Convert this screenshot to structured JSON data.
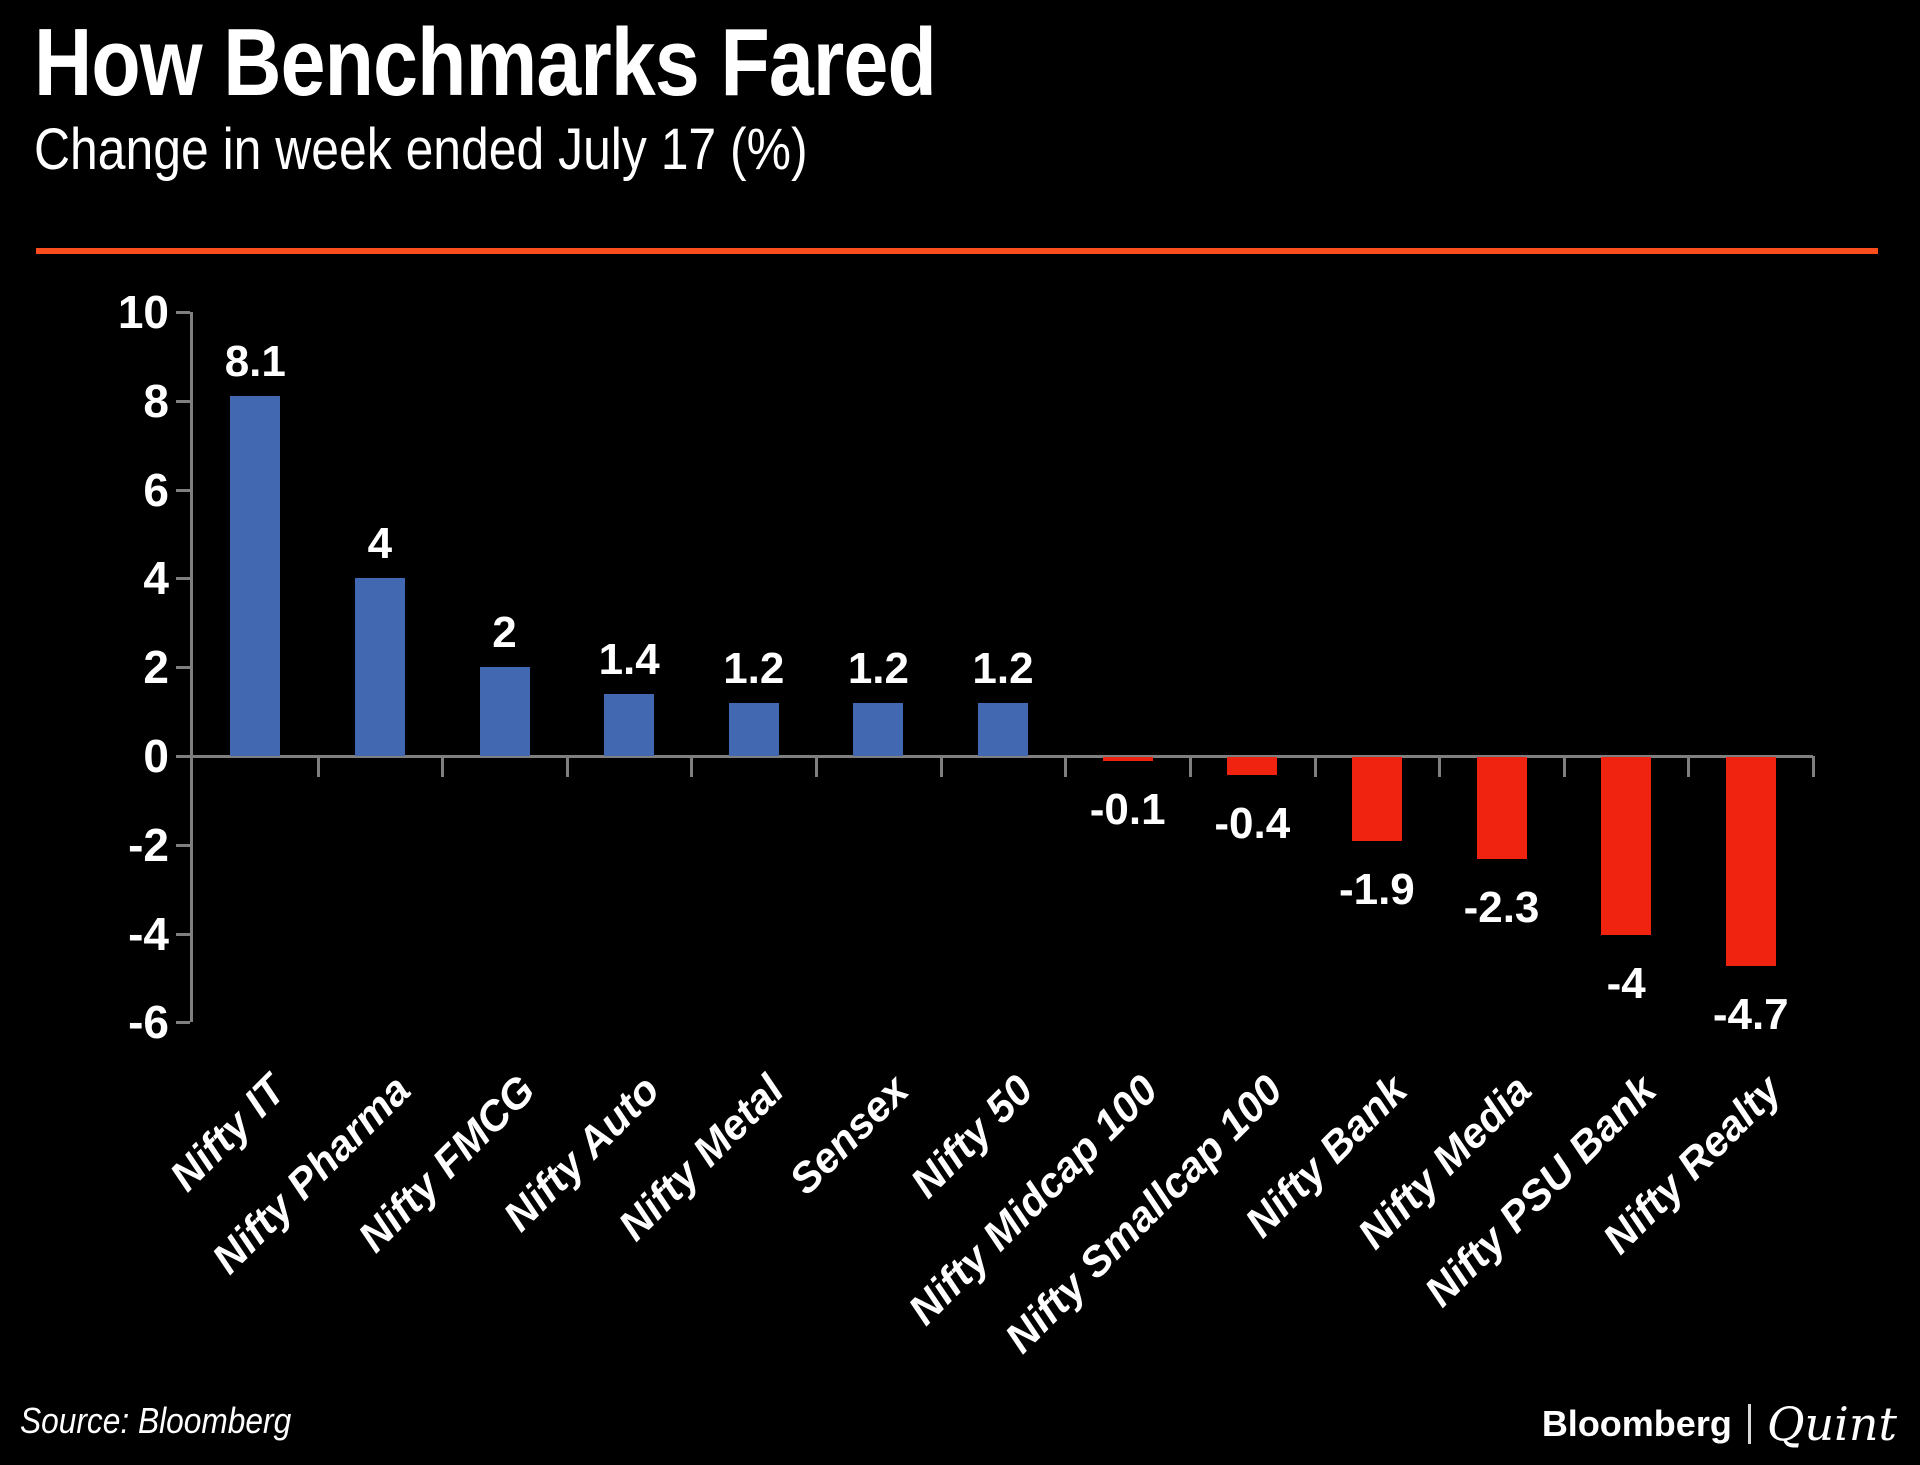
{
  "header": {
    "title": "How Benchmarks Fared",
    "subtitle": "Change in week ended July 17 (%)"
  },
  "footer": {
    "source": "Source: Bloomberg",
    "brand_primary": "Bloomberg",
    "brand_secondary": "Quint"
  },
  "colors": {
    "background": "#000000",
    "text": "#FFFFFF",
    "positive_bar": "#4268B1",
    "negative_bar": "#EF2310",
    "accent_rule": "#FB4D1E",
    "axis": "#7F7F7F"
  },
  "chart_data": {
    "type": "bar",
    "title": "How Benchmarks Fared",
    "subtitle": "Change in week ended July 17 (%)",
    "categories": [
      "Nifty IT",
      "Nifty Pharma",
      "Nifty FMCG",
      "Nifty Auto",
      "Nifty Metal",
      "Sensex",
      "Nifty 50",
      "Nifty Midcap 100",
      "Nifty Smallcap 100",
      "Nifty Bank",
      "Nifty Media",
      "Nifty PSU Bank",
      "Nifty Realty"
    ],
    "values": [
      8.1,
      4,
      2,
      1.4,
      1.2,
      1.2,
      1.2,
      -0.1,
      -0.4,
      -1.9,
      -2.3,
      -4,
      -4.7
    ],
    "value_labels": [
      "8.1",
      "4",
      "2",
      "1.4",
      "1.2",
      "1.2",
      "1.2",
      "-0.1",
      "-0.4",
      "-1.9",
      "-2.3",
      "-4",
      "-4.7"
    ],
    "xlabel": "",
    "ylabel": "",
    "ylim": [
      -6,
      10
    ],
    "yticks": [
      10,
      8,
      6,
      4,
      2,
      0,
      -2,
      -4,
      -6
    ],
    "grid": false,
    "legend": "none",
    "bar_color_rule": "positive=blue, negative=red"
  }
}
